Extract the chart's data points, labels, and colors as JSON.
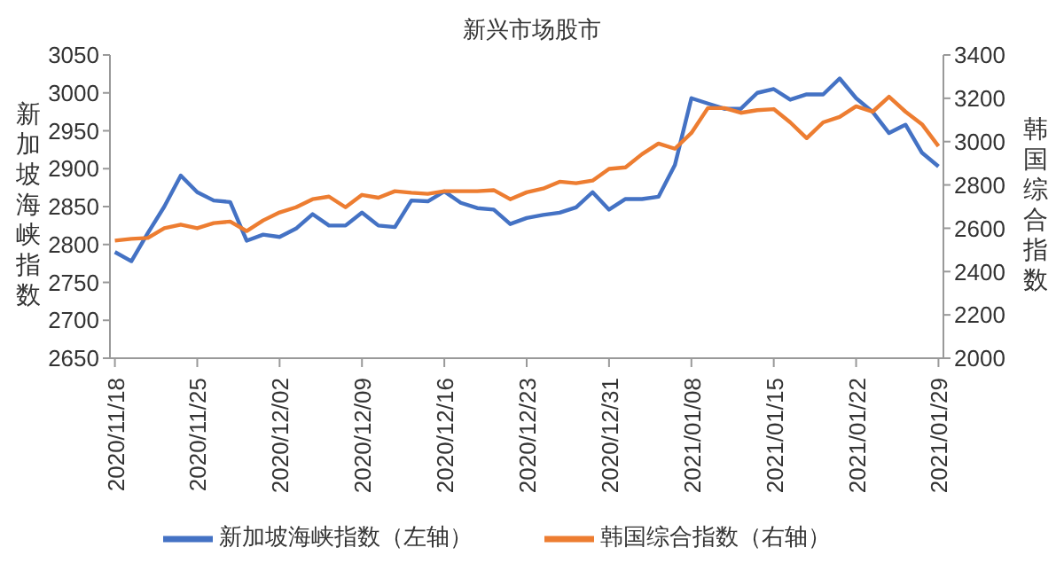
{
  "chart_data": {
    "type": "line",
    "title": "新兴市场股市",
    "ylabel": "新加坡海峡指数",
    "y2label": "韩国综合指数",
    "categories": [
      "2020/11/18",
      null,
      null,
      null,
      null,
      "2020/11/25",
      null,
      null,
      null,
      null,
      "2020/12/02",
      null,
      null,
      null,
      null,
      "2020/12/09",
      null,
      null,
      null,
      null,
      "2020/12/16",
      null,
      null,
      null,
      null,
      "2020/12/23",
      null,
      null,
      null,
      null,
      "2020/12/31",
      null,
      null,
      null,
      null,
      "2021/01/08",
      null,
      null,
      null,
      null,
      "2021/01/15",
      null,
      null,
      null,
      null,
      "2021/01/22",
      null,
      null,
      null,
      null,
      "2021/01/29"
    ],
    "series": [
      {
        "name": "新加坡海峡指数（左轴）",
        "color": "#4472c4",
        "values": [
          2790,
          2778,
          2815,
          2850,
          2891,
          2869,
          2858,
          2856,
          2805,
          2813,
          2810,
          2821,
          2840,
          2825,
          2825,
          2842,
          2825,
          2823,
          2858,
          2857,
          2870,
          2855,
          2848,
          2846,
          2827,
          2835,
          2839,
          2842,
          2849,
          2869,
          2846,
          2860,
          2860,
          2863,
          2905,
          2993,
          2986,
          2979,
          2979,
          3000,
          3005,
          2991,
          2998,
          2998,
          3019,
          2993,
          2975,
          2947,
          2958,
          2921,
          2903
        ]
      },
      {
        "name": "韩国综合指数（右轴）",
        "color": "#ed7d31",
        "axis": "y2",
        "values": [
          2543,
          2551,
          2555,
          2600,
          2617,
          2600,
          2624,
          2631,
          2587,
          2636,
          2673,
          2697,
          2734,
          2746,
          2697,
          2754,
          2741,
          2771,
          2764,
          2759,
          2771,
          2771,
          2771,
          2776,
          2734,
          2766,
          2783,
          2815,
          2808,
          2820,
          2874,
          2881,
          2942,
          2991,
          2967,
          3040,
          3155,
          3155,
          3133,
          3145,
          3150,
          3089,
          3016,
          3089,
          3114,
          3163,
          3138,
          3207,
          3138,
          3080,
          2979
        ]
      }
    ],
    "ylim": [
      2650,
      3050
    ],
    "yticks": [
      2650,
      2700,
      2750,
      2800,
      2850,
      2900,
      2950,
      3000,
      3050
    ],
    "y2lim": [
      2000,
      3400
    ],
    "y2ticks": [
      2000,
      2200,
      2400,
      2600,
      2800,
      3000,
      3200,
      3400
    ],
    "legend": "bottom",
    "grid": false,
    "marker": "none",
    "line_style": "solid"
  }
}
